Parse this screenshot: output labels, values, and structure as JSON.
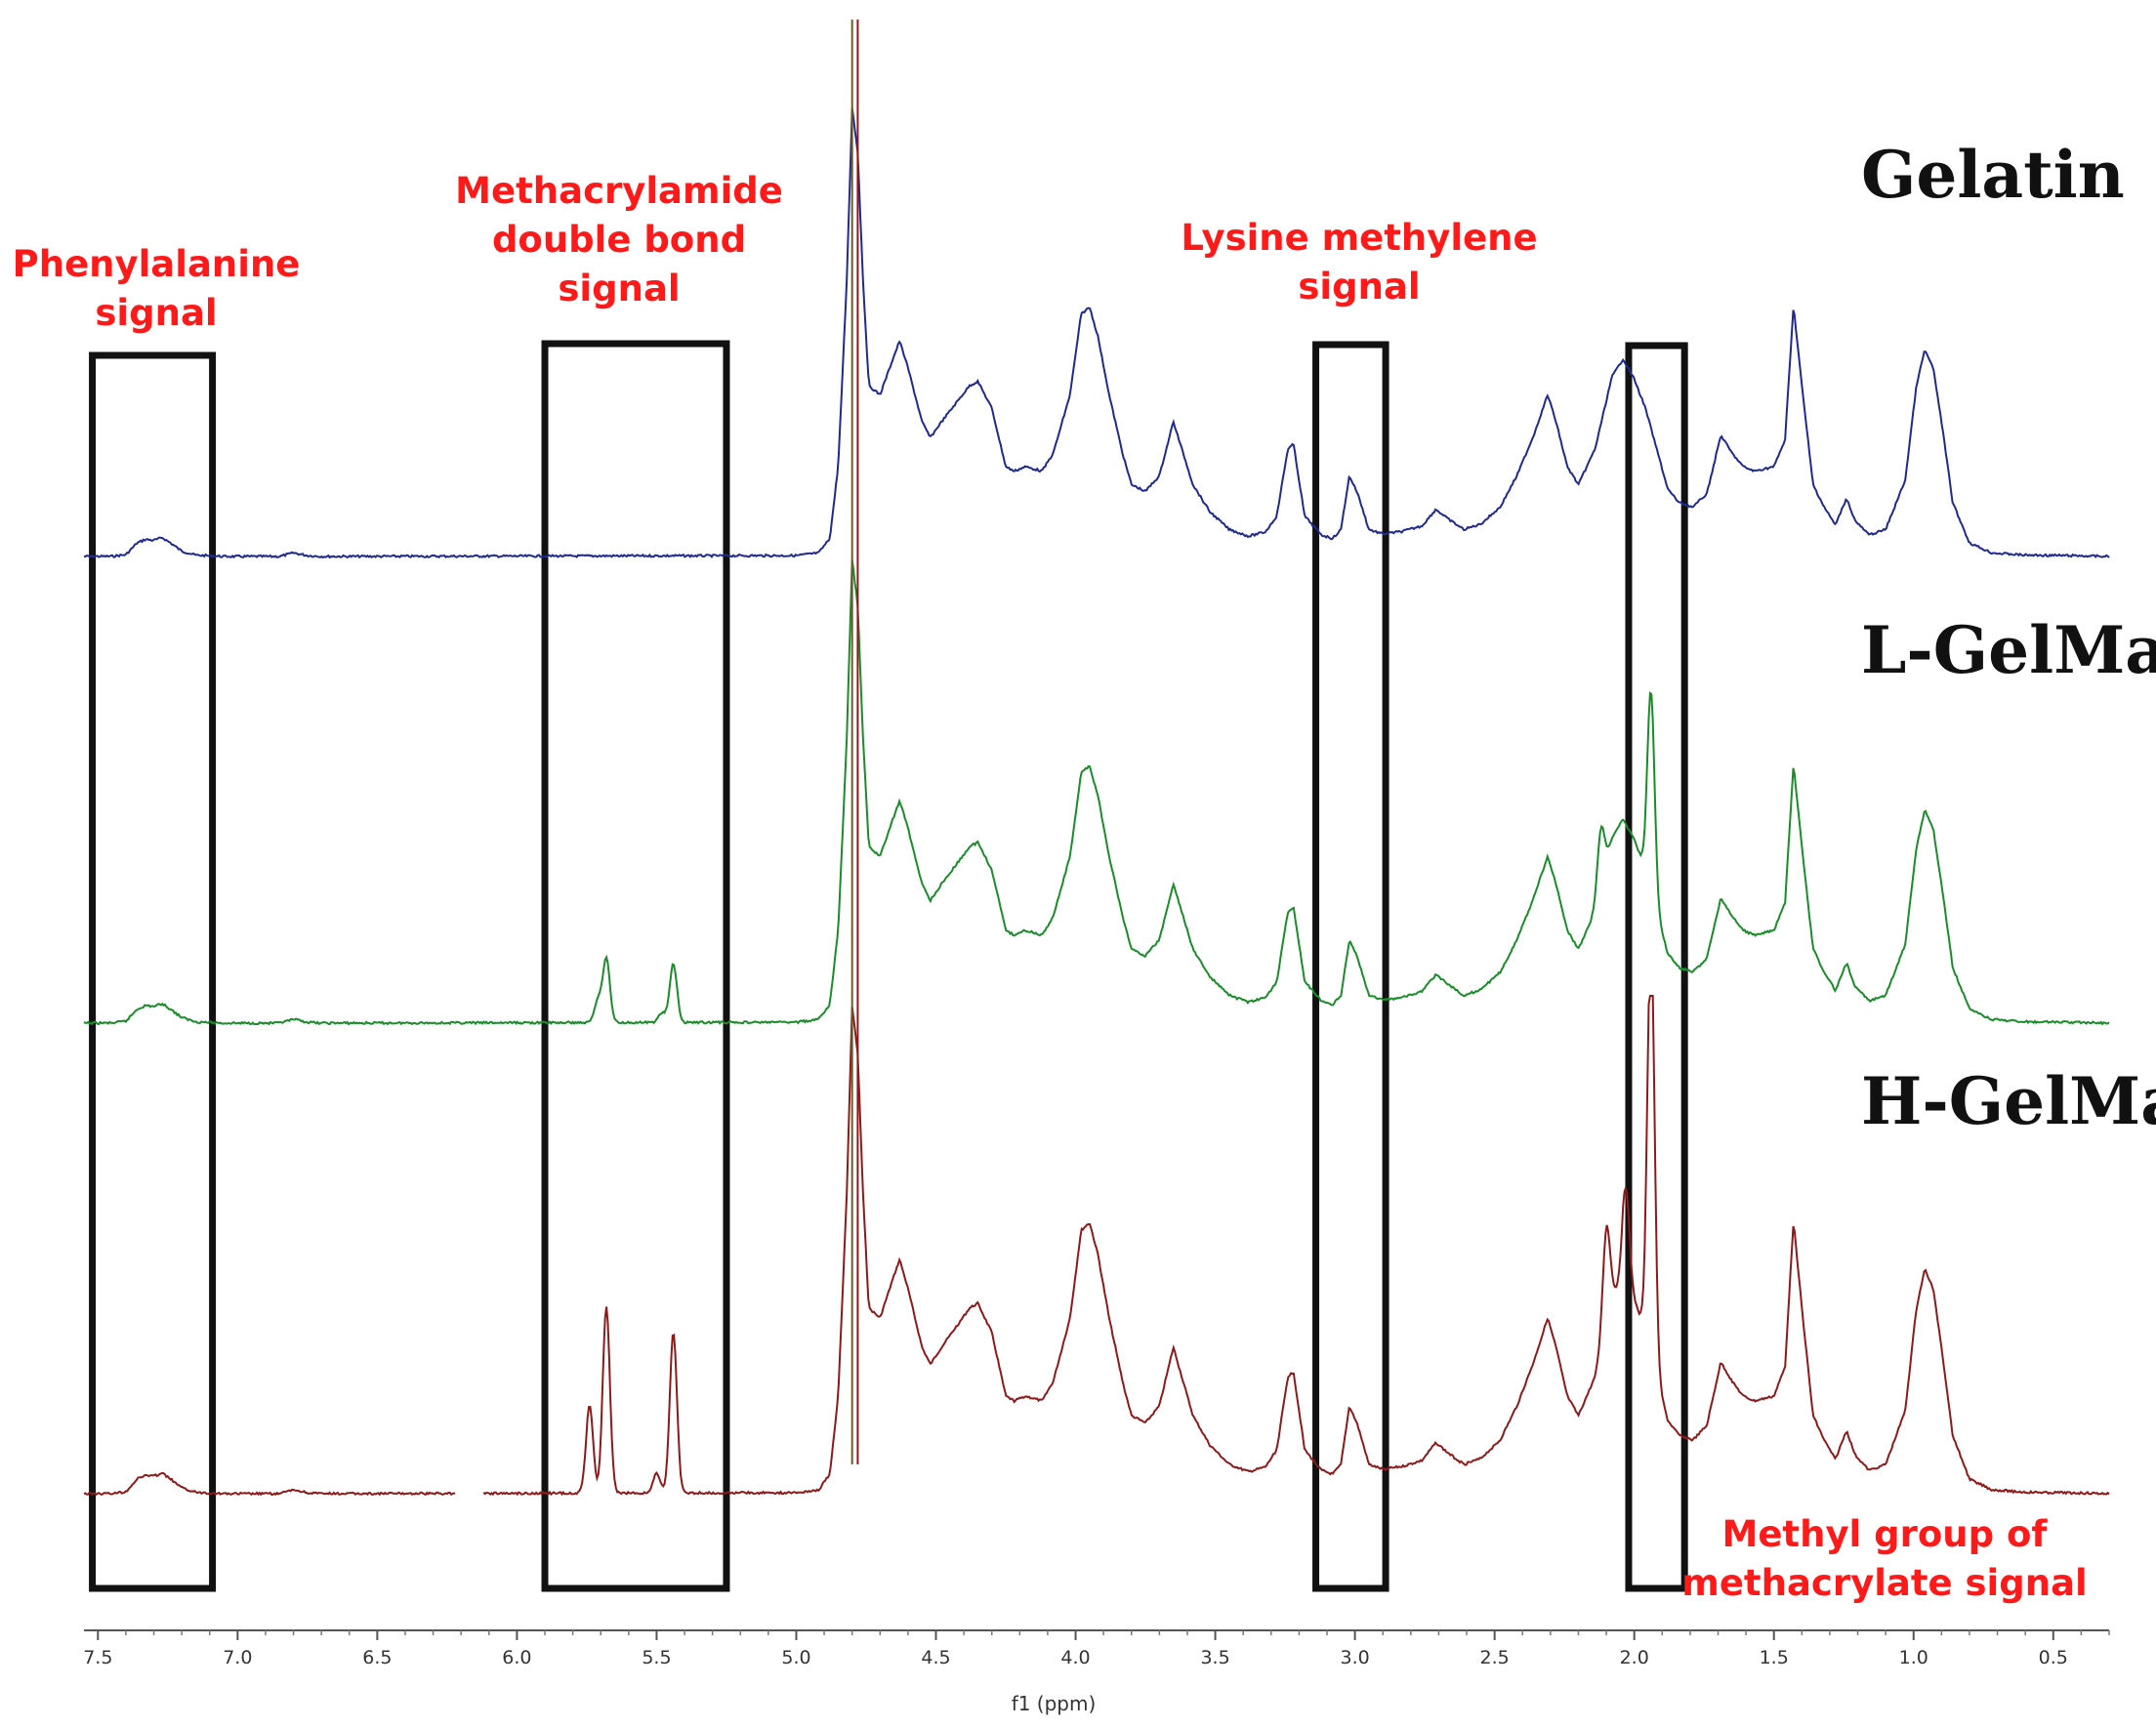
{
  "chart_data": {
    "type": "line",
    "title": "",
    "xlabel": "f1 (ppm)",
    "ylabel": "",
    "x_reversed": true,
    "xlim": [
      7.55,
      0.3
    ],
    "x_ticks": [
      "7.5",
      "7.0",
      "6.5",
      "6.0",
      "5.5",
      "5.0",
      "4.5",
      "4.0",
      "3.5",
      "3.0",
      "2.5",
      "2.0",
      "1.5",
      "1.0",
      "0.5"
    ],
    "grid": false,
    "baseline_shape": [
      [
        7.55,
        0
      ],
      [
        7.45,
        0.4
      ],
      [
        7.4,
        4
      ],
      [
        7.36,
        30
      ],
      [
        7.33,
        38
      ],
      [
        7.3,
        36
      ],
      [
        7.27,
        42
      ],
      [
        7.24,
        30
      ],
      [
        7.2,
        12
      ],
      [
        7.15,
        3
      ],
      [
        7.05,
        0
      ],
      [
        6.85,
        0
      ],
      [
        6.8,
        8
      ],
      [
        6.75,
        2
      ],
      [
        6.7,
        0
      ],
      [
        5.0,
        2
      ],
      [
        4.92,
        8
      ],
      [
        4.88,
        40
      ],
      [
        4.85,
        200
      ],
      [
        4.82,
        600
      ],
      [
        4.8,
        1000
      ],
      [
        4.78,
        900
      ],
      [
        4.76,
        600
      ],
      [
        4.74,
        380
      ],
      [
        4.7,
        360
      ],
      [
        4.66,
        430
      ],
      [
        4.63,
        480
      ],
      [
        4.6,
        420
      ],
      [
        4.55,
        300
      ],
      [
        4.52,
        265
      ],
      [
        4.48,
        300
      ],
      [
        4.43,
        340
      ],
      [
        4.38,
        380
      ],
      [
        4.35,
        390
      ],
      [
        4.3,
        330
      ],
      [
        4.25,
        200
      ],
      [
        4.22,
        190
      ],
      [
        4.18,
        200
      ],
      [
        4.15,
        195
      ],
      [
        4.12,
        190
      ],
      [
        4.08,
        230
      ],
      [
        4.02,
        360
      ],
      [
        3.98,
        540
      ],
      [
        3.95,
        555
      ],
      [
        3.92,
        490
      ],
      [
        3.88,
        360
      ],
      [
        3.83,
        225
      ],
      [
        3.8,
        160
      ],
      [
        3.75,
        145
      ],
      [
        3.7,
        180
      ],
      [
        3.65,
        300
      ],
      [
        3.62,
        240
      ],
      [
        3.58,
        160
      ],
      [
        3.52,
        100
      ],
      [
        3.45,
        60
      ],
      [
        3.38,
        45
      ],
      [
        3.32,
        55
      ],
      [
        3.28,
        90
      ],
      [
        3.24,
        240
      ],
      [
        3.22,
        250
      ],
      [
        3.18,
        90
      ],
      [
        3.12,
        48
      ],
      [
        3.08,
        40
      ],
      [
        3.05,
        60
      ],
      [
        3.02,
        180
      ],
      [
        2.99,
        140
      ],
      [
        2.95,
        60
      ],
      [
        2.9,
        50
      ],
      [
        2.83,
        56
      ],
      [
        2.76,
        68
      ],
      [
        2.71,
        105
      ],
      [
        2.67,
        85
      ],
      [
        2.61,
        60
      ],
      [
        2.55,
        72
      ],
      [
        2.48,
        110
      ],
      [
        2.42,
        180
      ],
      [
        2.36,
        270
      ],
      [
        2.31,
        360
      ],
      [
        2.28,
        300
      ],
      [
        2.24,
        200
      ],
      [
        2.2,
        160
      ],
      [
        2.14,
        240
      ],
      [
        2.08,
        400
      ],
      [
        2.04,
        440
      ],
      [
        2.0,
        395
      ],
      [
        1.96,
        330
      ],
      [
        1.92,
        240
      ],
      [
        1.88,
        150
      ],
      [
        1.84,
        120
      ],
      [
        1.79,
        110
      ],
      [
        1.74,
        140
      ],
      [
        1.69,
        270
      ],
      [
        1.65,
        230
      ],
      [
        1.61,
        200
      ],
      [
        1.57,
        190
      ],
      [
        1.5,
        200
      ],
      [
        1.46,
        260
      ],
      [
        1.43,
        560
      ],
      [
        1.4,
        380
      ],
      [
        1.36,
        160
      ],
      [
        1.32,
        110
      ],
      [
        1.28,
        70
      ],
      [
        1.24,
        130
      ],
      [
        1.21,
        80
      ],
      [
        1.16,
        48
      ],
      [
        1.1,
        60
      ],
      [
        1.03,
        170
      ],
      [
        0.99,
        380
      ],
      [
        0.96,
        460
      ],
      [
        0.93,
        420
      ],
      [
        0.9,
        300
      ],
      [
        0.86,
        120
      ],
      [
        0.8,
        30
      ],
      [
        0.72,
        8
      ],
      [
        0.6,
        3
      ],
      [
        0.45,
        2
      ],
      [
        0.3,
        0
      ]
    ],
    "series": [
      {
        "name": "Gelatin",
        "color": "#1f2a8c",
        "offset": 0,
        "scale": 1.0,
        "extra_peaks": []
      },
      {
        "name": "L-GelMa",
        "color": "#1a8c2a",
        "offset": 1,
        "scale": 0.95,
        "extra_peaks": [
          [
            5.71,
            45
          ],
          [
            5.68,
            130
          ],
          [
            5.44,
            120
          ],
          [
            5.48,
            20
          ],
          [
            1.94,
            410
          ],
          [
            2.12,
            120
          ]
        ]
      },
      {
        "name": "H-GelMa",
        "color": "#8c1a1a",
        "offset": 2,
        "scale": 1.0,
        "extra_peaks": [
          [
            5.74,
            180
          ],
          [
            5.68,
            380
          ],
          [
            5.44,
            330
          ],
          [
            5.5,
            40
          ],
          [
            1.94,
            860
          ],
          [
            2.1,
            200
          ],
          [
            2.03,
            200
          ]
        ]
      }
    ],
    "annotations": [
      {
        "text": [
          "Phenylalanine",
          "signal"
        ],
        "box_ppm": [
          7.52,
          7.09
        ]
      },
      {
        "text": [
          "Methacrylamide",
          "double bond",
          "signal"
        ],
        "box_ppm": [
          5.9,
          5.25
        ]
      },
      {
        "text": [
          "Lysine methylene",
          "signal"
        ],
        "box_ppm": [
          3.14,
          2.89
        ]
      },
      {
        "text": [
          "Methyl group of",
          "methacrylate signal"
        ],
        "box_ppm": [
          2.02,
          1.82
        ]
      }
    ]
  }
}
